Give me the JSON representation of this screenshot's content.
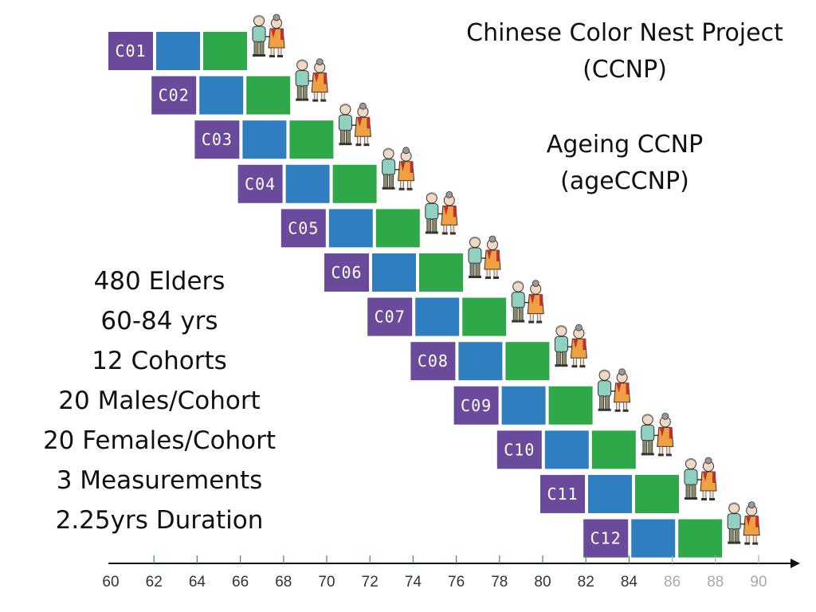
{
  "project": {
    "title_line1": "Chinese Color Nest Project",
    "title_line2": "(CCNP)",
    "subtitle_line1": "Ageing CCNP",
    "subtitle_line2": "(ageCCNP)"
  },
  "stats": [
    "480 Elders",
    "60-84 yrs",
    "12 Cohorts",
    "20 Males/Cohort",
    "20 Females/Cohort",
    "3 Measurements",
    "2.25yrs Duration"
  ],
  "cohorts": [
    "C01",
    "C02",
    "C03",
    "C04",
    "C05",
    "C06",
    "C07",
    "C08",
    "C09",
    "C10",
    "C11",
    "C12"
  ],
  "axis": {
    "ticks": [
      "60",
      "62",
      "64",
      "66",
      "68",
      "70",
      "72",
      "74",
      "76",
      "78",
      "80",
      "82",
      "84",
      "86",
      "88",
      "90"
    ],
    "future_ticks": [
      "86",
      "88",
      "90"
    ]
  },
  "colors": {
    "purple": "#6a4a9a",
    "blue": "#2f7fc0",
    "green": "#2fa84a",
    "tick_green": "#3a9a3a",
    "figure_man_shirt": "#8fd0c0",
    "figure_woman_dress": "#f0a040",
    "figure_woman_scarf": "#c03030"
  },
  "icons": {
    "elderly_couple": "elderly-couple-icon"
  }
}
